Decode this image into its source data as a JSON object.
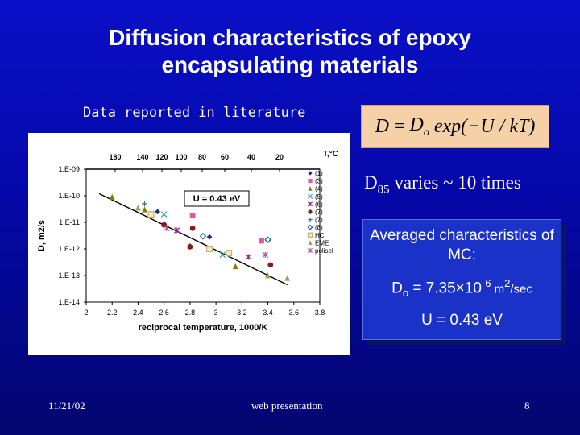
{
  "slide": {
    "title_line1": "Diffusion characteristics of epoxy",
    "title_line2": "encapsulating materials",
    "subtitle": "Data reported in literature",
    "formula": {
      "lhs": "D",
      "eq": "=",
      "d": "D",
      "d_sub": "o",
      "rest": "exp(−U / kT)"
    },
    "d85": {
      "main": "D",
      "sub": "85",
      "text": " varies ~ 10 times"
    },
    "mc_box": {
      "title": "Averaged characteristics of MC:",
      "do_label": "D",
      "do_sub": "o",
      "do_value": " = 7.35×10",
      "do_exp": "-6",
      "do_unit": " m",
      "do_unit_exp": "2",
      "do_unit_tail": "/sec",
      "u_value": "U = 0.43 eV"
    },
    "footer": {
      "date": "11/21/02",
      "center": "web presentation",
      "page": "8"
    }
  },
  "chart_data": {
    "type": "scatter",
    "xlabel": "reciprocal temperature, 1000/K",
    "ylabel": "D, m2/s",
    "y_scale": "log",
    "xlim": [
      2,
      3.8
    ],
    "ylim": [
      1e-14,
      1e-09
    ],
    "x_ticks": [
      "2",
      "2.2",
      "2.4",
      "2.6",
      "2.8",
      "3",
      "3.2",
      "3.4",
      "3.6",
      "3.8"
    ],
    "y_ticks": [
      "1.E-09",
      "1.E-10",
      "1.E-11",
      "1.E-12",
      "1.E-13",
      "1.E-14"
    ],
    "top_axis_label": "T,°C",
    "top_ticks": [
      "180",
      "140",
      "120",
      "100",
      "80",
      "60",
      "40",
      "20"
    ],
    "annotation": "U = 0.43 eV",
    "fit_line": {
      "x": [
        2.1,
        3.55
      ],
      "y": [
        1.2e-10,
        4.5e-14
      ]
    },
    "legend_position": "right",
    "series": [
      {
        "name": "(1)",
        "color": "#1a2a8a",
        "marker": "diamond",
        "points": [
          [
            2.55,
            2.5e-11
          ],
          [
            2.95,
            2.8e-12
          ]
        ]
      },
      {
        "name": "(3)",
        "color": "#e05a9c",
        "marker": "square",
        "points": [
          [
            2.82,
            1.8e-11
          ],
          [
            3.35,
            2e-12
          ]
        ]
      },
      {
        "name": "(4)",
        "color": "#808000",
        "marker": "triangle",
        "points": [
          [
            2.2,
            9e-11
          ],
          [
            2.45,
            3e-11
          ],
          [
            2.8,
            1.3e-12
          ],
          [
            3.15,
            2.2e-13
          ]
        ]
      },
      {
        "name": "(5)",
        "color": "#33aaaa",
        "marker": "x",
        "points": [
          [
            2.6,
            2e-11
          ],
          [
            3.05,
            6e-13
          ]
        ]
      },
      {
        "name": "(6)",
        "color": "#8a2a8a",
        "marker": "star",
        "points": [
          [
            2.7,
            5e-12
          ],
          [
            3.25,
            5e-13
          ]
        ]
      },
      {
        "name": "(7)",
        "color": "#8a1a1a",
        "marker": "circle",
        "points": [
          [
            2.6,
            8e-12
          ],
          [
            2.82,
            6e-12
          ],
          [
            2.8,
            1.2e-12
          ],
          [
            3.42,
            2.5e-13
          ]
        ]
      },
      {
        "name": "(7)",
        "color": "#3a6aaa",
        "marker": "plus",
        "points": [
          [
            2.45,
            5e-11
          ],
          [
            3.1,
            6e-13
          ]
        ]
      },
      {
        "name": "(8)",
        "color": "#1a50b0",
        "marker": "diamond-open",
        "points": [
          [
            2.9,
            3e-12
          ],
          [
            3.4,
            2.2e-12
          ]
        ]
      },
      {
        "name": "HC",
        "color": "#c8b070",
        "marker": "square-open",
        "points": [
          [
            2.5,
            2e-11
          ],
          [
            2.95,
            1e-12
          ],
          [
            3.1,
            7e-13
          ]
        ]
      },
      {
        "name": "EME",
        "color": "#a0a050",
        "marker": "triangle",
        "points": [
          [
            2.4,
            3.5e-11
          ],
          [
            3.4,
            1e-13
          ],
          [
            3.55,
            8e-14
          ]
        ]
      },
      {
        "name": "polisel",
        "color": "#b050b0",
        "marker": "star",
        "points": [
          [
            2.62,
            6e-12
          ],
          [
            3.38,
            6e-13
          ]
        ]
      }
    ]
  }
}
